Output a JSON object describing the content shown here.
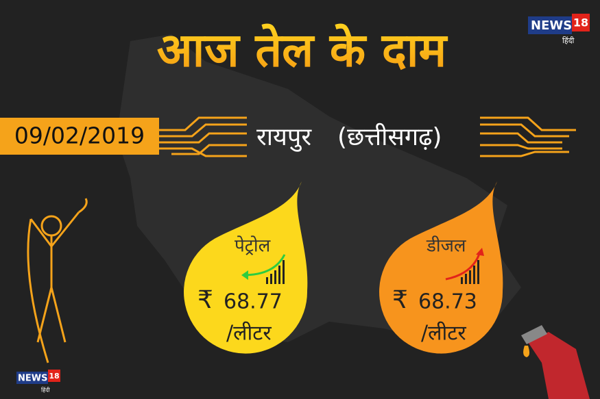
{
  "header": {
    "title": "आज तेल के दाम"
  },
  "date": "09/02/2019",
  "location": {
    "city": "रायपुर",
    "state": "(छत्तीसगढ़)"
  },
  "fuels": [
    {
      "name": "पेट्रोल",
      "currency": "₹",
      "price": "68.77",
      "unit": "/लीटर"
    },
    {
      "name": "डीजल",
      "currency": "₹",
      "price": "68.73",
      "unit": "/लीटर"
    }
  ],
  "logos": [
    {
      "name": "NEWS",
      "number": "18",
      "language": "हिंदी"
    },
    {
      "name": "NEWS",
      "number": "18",
      "language": "हिंदी"
    }
  ]
}
